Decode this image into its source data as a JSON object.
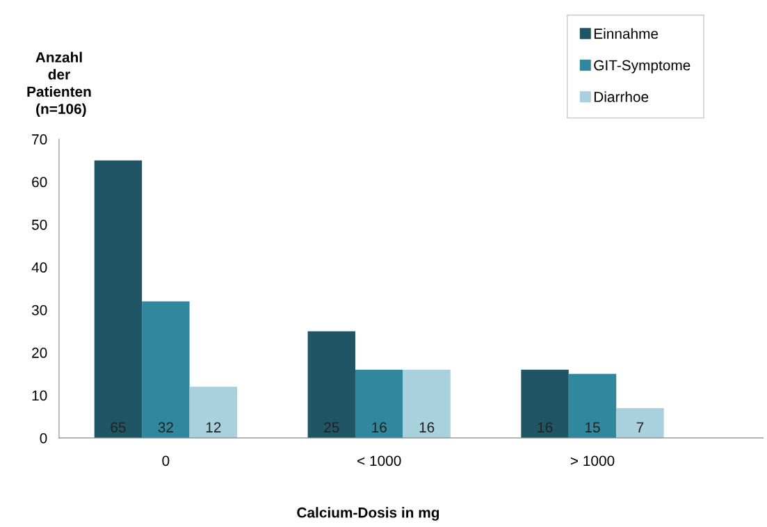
{
  "chart_data": {
    "type": "bar",
    "ylabel": "Anzahl\nder\nPatienten\n (n=106)",
    "xlabel": "Calcium-Dosis in mg",
    "categories": [
      "0",
      "< 1000",
      "> 1000"
    ],
    "series": [
      {
        "name": "Einnahme",
        "color": "#1f5565",
        "values": [
          65,
          25,
          16
        ]
      },
      {
        "name": "GIT-Symptome",
        "color": "#31879d",
        "values": [
          32,
          16,
          15
        ]
      },
      {
        "name": "Diarrhoe",
        "color": "#a9d0dd",
        "values": [
          12,
          16,
          7
        ]
      }
    ],
    "ylim": [
      0,
      70
    ],
    "yticks": [
      0,
      10,
      20,
      30,
      40,
      50,
      60,
      70
    ],
    "data_labels": true,
    "legend": "top right",
    "grid": false
  }
}
